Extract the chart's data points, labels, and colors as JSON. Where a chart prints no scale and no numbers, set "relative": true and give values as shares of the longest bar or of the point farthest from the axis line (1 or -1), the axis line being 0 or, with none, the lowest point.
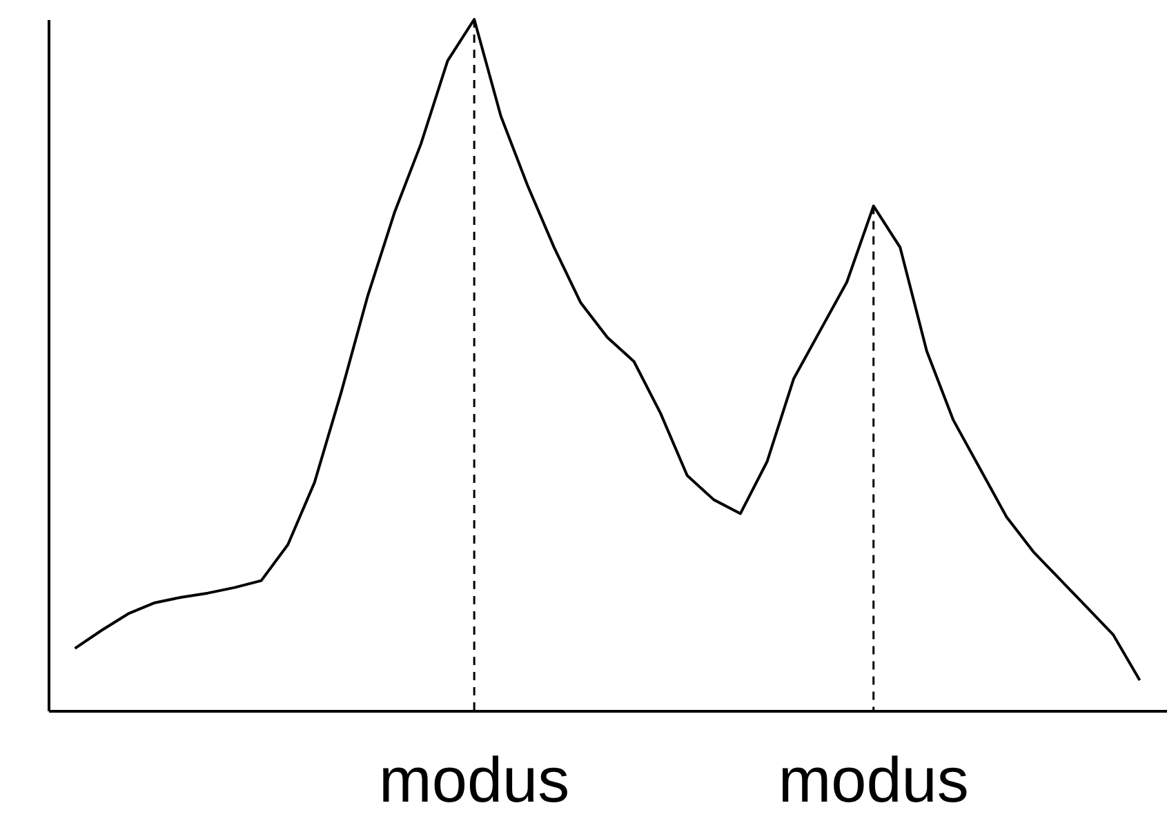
{
  "chart_data": {
    "type": "line",
    "relative": true,
    "color": "#000000",
    "grid": false,
    "tick_labels": false,
    "categories": [
      null,
      null,
      null,
      null,
      null,
      null,
      null,
      null,
      null,
      null,
      null,
      null,
      null,
      null,
      null,
      null,
      null,
      null,
      null,
      null,
      null,
      null,
      null,
      null,
      null,
      null,
      null,
      null,
      null,
      null,
      null,
      null,
      null,
      null,
      null,
      null,
      null,
      null,
      null,
      null,
      null
    ],
    "values": [
      0.09,
      0.116,
      0.14,
      0.156,
      0.164,
      0.17,
      0.178,
      0.188,
      0.24,
      0.33,
      0.46,
      0.6,
      0.72,
      0.82,
      0.94,
      1,
      0.86,
      0.76,
      0.67,
      0.59,
      0.54,
      0.505,
      0.43,
      0.34,
      0.305,
      0.285,
      0.36,
      0.48,
      0.55,
      0.62,
      0.73,
      0.67,
      0.52,
      0.42,
      0.35,
      0.28,
      0.23,
      0.19,
      0.15,
      0.11,
      0.044
    ],
    "annotations": [
      "modus",
      "modus"
    ]
  }
}
